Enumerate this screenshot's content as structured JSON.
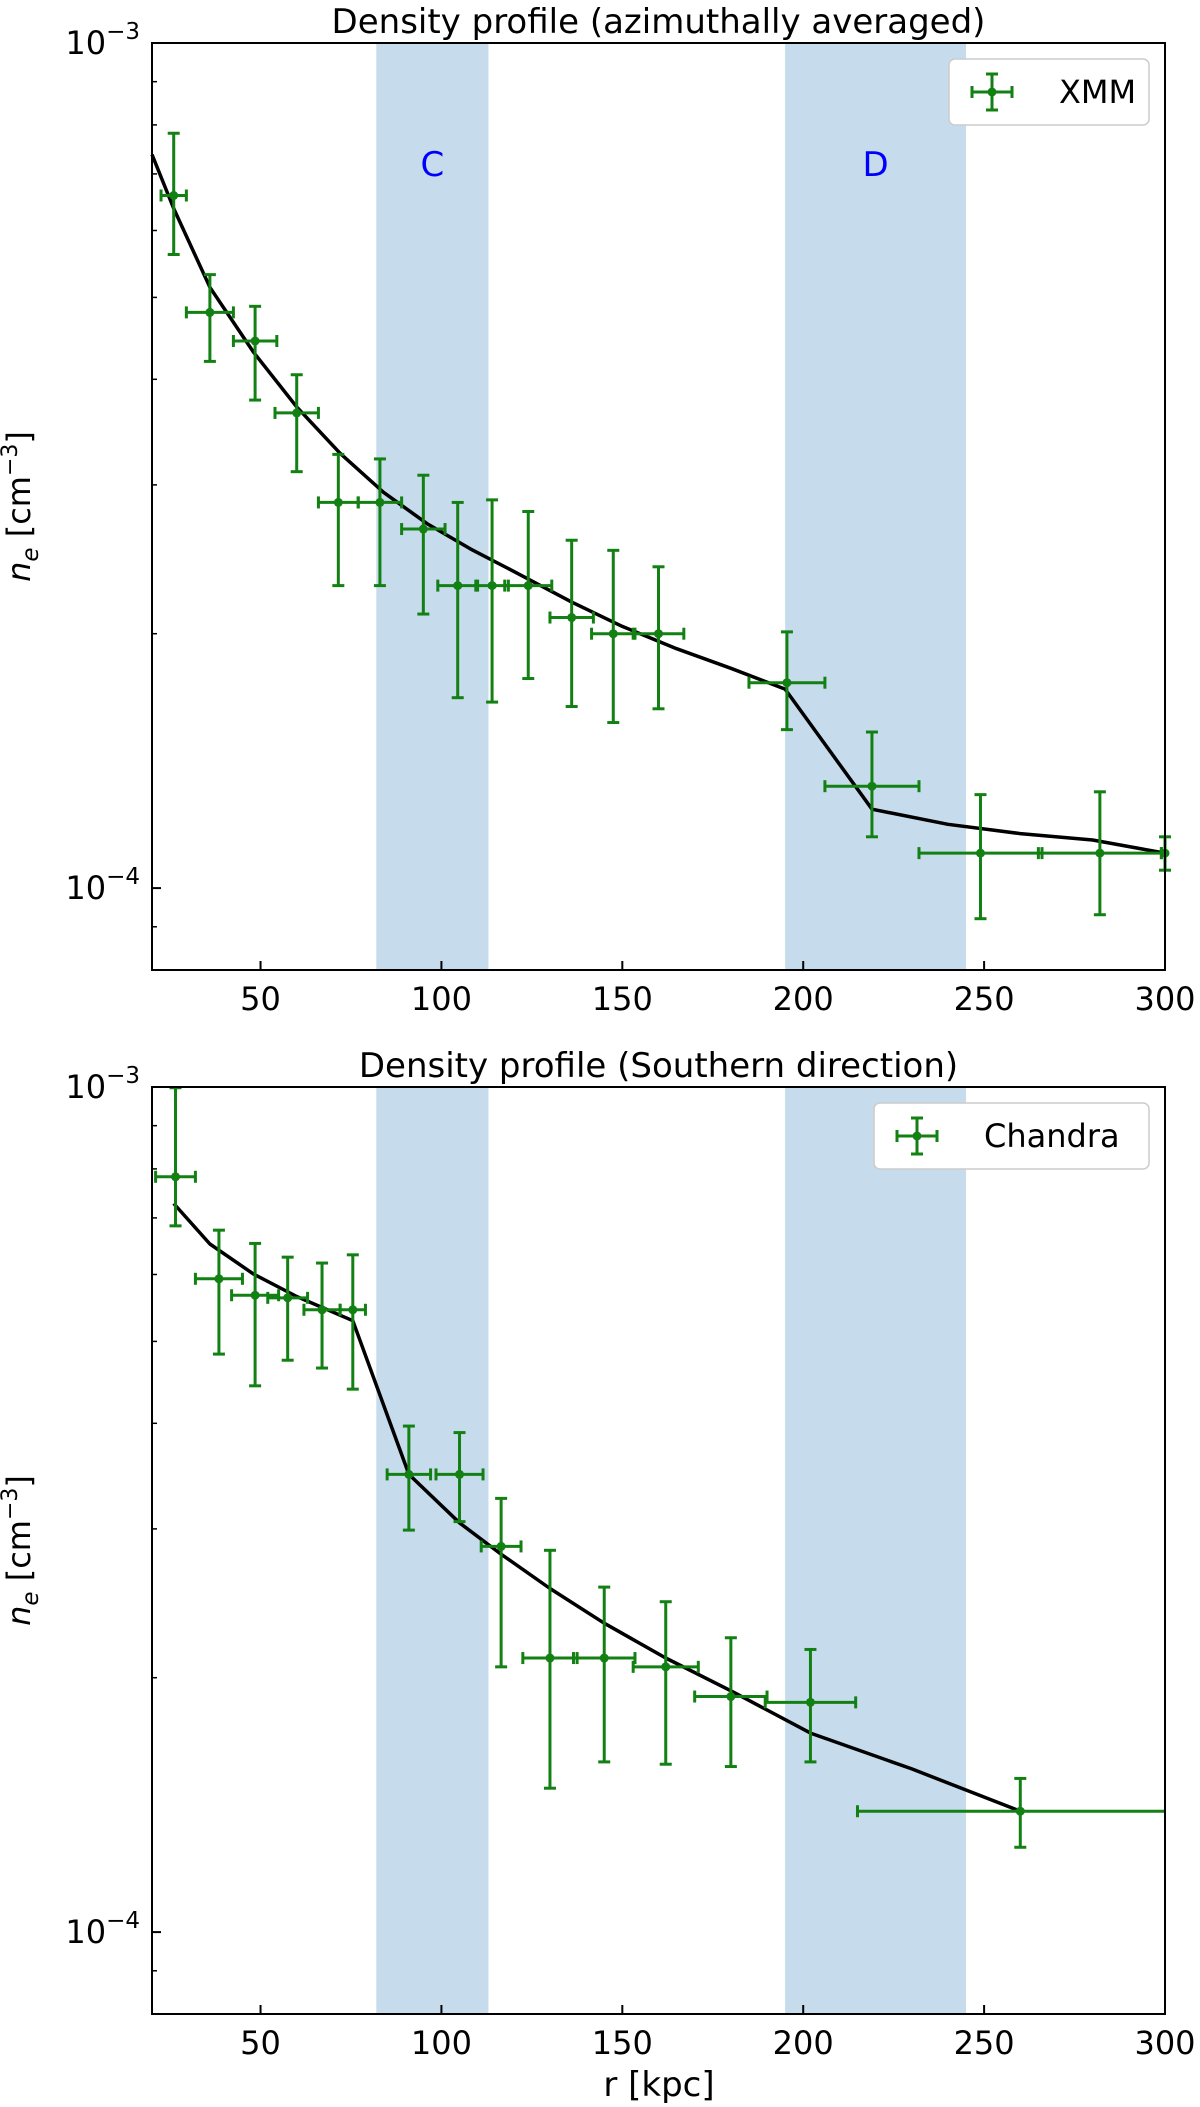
{
  "figure": {
    "xlabel": "r [kpc]",
    "ylabel_main": "n",
    "ylabel_sub": "e",
    "ylabel_unit_open": " [cm",
    "ylabel_unit_exp": "−3",
    "ylabel_unit_close": "]",
    "colors": {
      "data": "#138013",
      "model": "#000000",
      "band": "#c6dced",
      "band_label": "#0000ff"
    }
  },
  "chart_data": [
    {
      "type": "scatter",
      "title": "Density profile (azimuthally averaged)",
      "xlim": [
        20,
        300
      ],
      "ylim_log": [
        8e-05,
        0.001
      ],
      "y_scale": "log",
      "x_ticks": [
        50,
        100,
        150,
        200,
        250,
        300
      ],
      "y_major_ticks": [
        {
          "mantissa": "10",
          "exponent": "−3",
          "value": 0.001
        },
        {
          "mantissa": "10",
          "exponent": "−4",
          "value": 0.0001
        }
      ],
      "y_minor_ticks": [
        0.0002,
        0.0003,
        0.0004,
        0.0005,
        0.0006,
        0.0007,
        0.0008,
        0.0009,
        9e-05
      ],
      "bands": [
        {
          "label": "C",
          "x_range": [
            82,
            113
          ]
        },
        {
          "label": "D",
          "x_range": [
            195,
            245
          ]
        }
      ],
      "legend": {
        "label": "XMM",
        "position": "top-right"
      },
      "series": [
        {
          "name": "XMM",
          "points": [
            {
              "x": 26,
              "xerr": 3.5,
              "y": 0.00066,
              "ylo": 0.000562,
              "yhi": 0.000782
            },
            {
              "x": 36,
              "xerr": 6.5,
              "y": 0.00048,
              "ylo": 0.00042,
              "yhi": 0.000532
            },
            {
              "x": 48.5,
              "xerr": 6,
              "y": 0.000444,
              "ylo": 0.000378,
              "yhi": 0.000488
            },
            {
              "x": 60,
              "xerr": 6,
              "y": 0.000365,
              "ylo": 0.000311,
              "yhi": 0.000405
            },
            {
              "x": 71.5,
              "xerr": 5.5,
              "y": 0.000286,
              "ylo": 0.000228,
              "yhi": 0.000326
            },
            {
              "x": 83,
              "xerr": 6,
              "y": 0.000286,
              "ylo": 0.000228,
              "yhi": 0.000322
            },
            {
              "x": 95,
              "xerr": 6,
              "y": 0.000266,
              "ylo": 0.000211,
              "yhi": 0.000308
            },
            {
              "x": 104.5,
              "xerr": 5.5,
              "y": 0.000228,
              "ylo": 0.000168,
              "yhi": 0.000286
            },
            {
              "x": 114,
              "xerr": 4.5,
              "y": 0.000228,
              "ylo": 0.000166,
              "yhi": 0.000288
            },
            {
              "x": 124,
              "xerr": 6.5,
              "y": 0.000228,
              "ylo": 0.000177,
              "yhi": 0.000279
            },
            {
              "x": 136,
              "xerr": 6,
              "y": 0.000209,
              "ylo": 0.000164,
              "yhi": 0.000258
            },
            {
              "x": 147.5,
              "xerr": 6,
              "y": 0.0002,
              "ylo": 0.000157,
              "yhi": 0.000251
            },
            {
              "x": 160,
              "xerr": 7,
              "y": 0.0002,
              "ylo": 0.000163,
              "yhi": 0.00024
            },
            {
              "x": 195.5,
              "xerr": 10.5,
              "y": 0.000175,
              "ylo": 0.000154,
              "yhi": 0.000201
            },
            {
              "x": 219,
              "xerr": 13,
              "y": 0.000132,
              "ylo": 0.000115,
              "yhi": 0.000153
            },
            {
              "x": 249,
              "xerr": 17,
              "y": 0.00011,
              "ylo": 9.2e-05,
              "yhi": 0.000129
            },
            {
              "x": 282,
              "xerr": 17,
              "y": 0.00011,
              "ylo": 9.3e-05,
              "yhi": 0.00013
            },
            {
              "x": 300,
              "xerr": 1,
              "y": 0.00011,
              "ylo": 0.000105,
              "yhi": 0.000115
            }
          ]
        }
      ],
      "model": {
        "x": [
          20,
          26,
          36,
          48,
          60,
          72,
          84,
          96,
          108,
          120,
          136,
          150,
          165,
          180,
          195,
          219,
          240,
          260,
          280,
          300
        ],
        "y": [
          0.000738,
          0.000637,
          0.000514,
          0.000431,
          0.000371,
          0.000327,
          0.000294,
          0.00027,
          0.000252,
          0.000237,
          0.000218,
          0.000204,
          0.000192,
          0.000182,
          0.000172,
          0.000124,
          0.000119,
          0.000116,
          0.000114,
          0.00011
        ]
      }
    },
    {
      "type": "scatter",
      "title": "Density profile (Southern direction)",
      "xlim": [
        20,
        300
      ],
      "ylim_log": [
        8e-05,
        0.001
      ],
      "y_scale": "log",
      "x_ticks": [
        50,
        100,
        150,
        200,
        250,
        300
      ],
      "y_major_ticks": [
        {
          "mantissa": "10",
          "exponent": "−3",
          "value": 0.001
        },
        {
          "mantissa": "10",
          "exponent": "−4",
          "value": 0.0001
        }
      ],
      "y_minor_ticks": [
        0.0002,
        0.0003,
        0.0004,
        0.0005,
        0.0006,
        0.0007,
        0.0008,
        0.0009,
        9e-05
      ],
      "bands": [
        {
          "label": "",
          "x_range": [
            82,
            113
          ]
        },
        {
          "label": "",
          "x_range": [
            195,
            245
          ]
        }
      ],
      "legend": {
        "label": "Chandra",
        "position": "top-right"
      },
      "series": [
        {
          "name": "Chandra",
          "points": [
            {
              "x": 26.5,
              "xerr": 5.5,
              "y": 0.000783,
              "ylo": 0.000685,
              "yhi": 0.000998
            },
            {
              "x": 38.5,
              "xerr": 6.5,
              "y": 0.000593,
              "ylo": 0.000483,
              "yhi": 0.000677
            },
            {
              "x": 48.5,
              "xerr": 6.5,
              "y": 0.000567,
              "ylo": 0.000443,
              "yhi": 0.000653
            },
            {
              "x": 57.5,
              "xerr": 5.5,
              "y": 0.000563,
              "ylo": 0.000475,
              "yhi": 0.000629
            },
            {
              "x": 67,
              "xerr": 5,
              "y": 0.000545,
              "ylo": 0.000465,
              "yhi": 0.000619
            },
            {
              "x": 75.5,
              "xerr": 3.5,
              "y": 0.000545,
              "ylo": 0.000439,
              "yhi": 0.000633
            },
            {
              "x": 91,
              "xerr": 6,
              "y": 0.000348,
              "ylo": 0.000299,
              "yhi": 0.000397
            },
            {
              "x": 105,
              "xerr": 6.5,
              "y": 0.000348,
              "ylo": 0.000306,
              "yhi": 0.00039
            },
            {
              "x": 116.5,
              "xerr": 5.5,
              "y": 0.000286,
              "ylo": 0.000206,
              "yhi": 0.000326
            },
            {
              "x": 130,
              "xerr": 7.5,
              "y": 0.000211,
              "ylo": 0.000148,
              "yhi": 0.000283
            },
            {
              "x": 145,
              "xerr": 8.5,
              "y": 0.000211,
              "ylo": 0.000159,
              "yhi": 0.000256
            },
            {
              "x": 162,
              "xerr": 9,
              "y": 0.000206,
              "ylo": 0.000158,
              "yhi": 0.000246
            },
            {
              "x": 180,
              "xerr": 10,
              "y": 0.00019,
              "ylo": 0.000157,
              "yhi": 0.000223
            },
            {
              "x": 202,
              "xerr": 12.5,
              "y": 0.000187,
              "ylo": 0.000159,
              "yhi": 0.000216
            },
            {
              "x": 260,
              "xerr": 45,
              "y": 0.000139,
              "ylo": 0.000126,
              "yhi": 0.000152
            }
          ]
        }
      ],
      "model": {
        "x": [
          26,
          36,
          48,
          60,
          75.5,
          91,
          105,
          116,
          130,
          145,
          162,
          180,
          202,
          230,
          260
        ],
        "y": [
          0.000728,
          0.000652,
          0.000601,
          0.000565,
          0.000529,
          0.000348,
          0.000305,
          0.000281,
          0.000255,
          0.000232,
          0.000211,
          0.000193,
          0.000172,
          0.000156,
          0.000139
        ]
      }
    }
  ]
}
